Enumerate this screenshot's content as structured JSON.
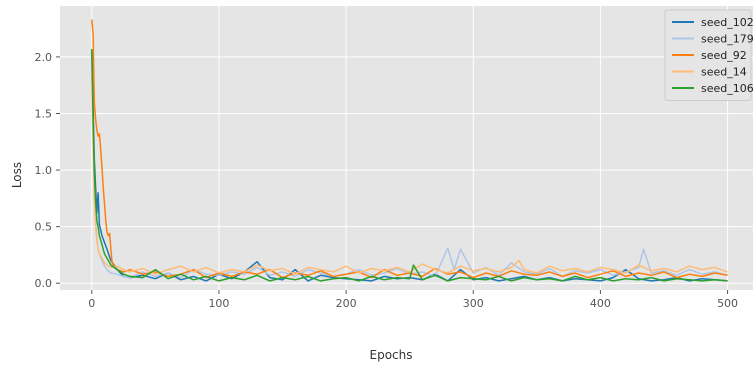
{
  "chart_data": {
    "type": "line",
    "title": "",
    "xlabel": "Epochs",
    "ylabel": "Loss",
    "xlim": [
      -25,
      520
    ],
    "ylim": [
      -0.06,
      2.45
    ],
    "xticks": [
      0,
      100,
      200,
      300,
      400,
      500
    ],
    "yticks": [
      0.0,
      0.5,
      1.0,
      1.5,
      2.0
    ],
    "xtick_labels": [
      "0",
      "100",
      "200",
      "300",
      "400",
      "500"
    ],
    "ytick_labels": [
      "0.0",
      "0.5",
      "1.0",
      "1.5",
      "2.0"
    ],
    "grid": true,
    "legend_position": "top-right",
    "background": "#e5e5e5",
    "series": [
      {
        "name": "seed_102",
        "color": "#1f77b4",
        "x": [
          0,
          1,
          2,
          3,
          4,
          5,
          6,
          8,
          10,
          12,
          15,
          20,
          25,
          30,
          40,
          50,
          60,
          70,
          80,
          90,
          100,
          110,
          120,
          130,
          140,
          150,
          160,
          170,
          180,
          190,
          200,
          210,
          220,
          230,
          240,
          250,
          260,
          270,
          280,
          290,
          300,
          310,
          320,
          330,
          340,
          350,
          360,
          370,
          380,
          390,
          400,
          410,
          420,
          430,
          440,
          450,
          460,
          470,
          480,
          490,
          500
        ],
        "values": [
          2.05,
          1.55,
          1.1,
          0.85,
          0.62,
          0.8,
          0.52,
          0.42,
          0.36,
          0.3,
          0.2,
          0.12,
          0.06,
          0.05,
          0.07,
          0.04,
          0.09,
          0.03,
          0.06,
          0.02,
          0.08,
          0.04,
          0.1,
          0.19,
          0.05,
          0.03,
          0.12,
          0.02,
          0.07,
          0.05,
          0.04,
          0.03,
          0.02,
          0.06,
          0.04,
          0.05,
          0.03,
          0.08,
          0.02,
          0.12,
          0.03,
          0.05,
          0.02,
          0.04,
          0.06,
          0.03,
          0.05,
          0.02,
          0.04,
          0.03,
          0.02,
          0.05,
          0.12,
          0.04,
          0.02,
          0.03,
          0.05,
          0.02,
          0.04,
          0.03,
          0.02
        ]
      },
      {
        "name": "seed_179",
        "color": "#aec7e8",
        "x": [
          0,
          1,
          2,
          3,
          4,
          5,
          6,
          8,
          10,
          12,
          15,
          20,
          25,
          30,
          40,
          50,
          60,
          70,
          80,
          90,
          100,
          110,
          120,
          130,
          140,
          150,
          160,
          170,
          180,
          190,
          200,
          210,
          220,
          230,
          240,
          250,
          260,
          270,
          280,
          285,
          290,
          300,
          310,
          320,
          330,
          340,
          350,
          360,
          370,
          380,
          390,
          400,
          410,
          420,
          430,
          434,
          440,
          450,
          460,
          470,
          480,
          490,
          500
        ],
        "values": [
          1.95,
          1.3,
          0.8,
          0.55,
          0.4,
          0.3,
          0.26,
          0.2,
          0.15,
          0.12,
          0.09,
          0.08,
          0.06,
          0.05,
          0.1,
          0.06,
          0.09,
          0.05,
          0.12,
          0.08,
          0.07,
          0.1,
          0.08,
          0.14,
          0.07,
          0.1,
          0.06,
          0.12,
          0.09,
          0.06,
          0.08,
          0.12,
          0.07,
          0.09,
          0.13,
          0.08,
          0.1,
          0.06,
          0.31,
          0.12,
          0.3,
          0.09,
          0.14,
          0.07,
          0.18,
          0.1,
          0.08,
          0.13,
          0.06,
          0.11,
          0.09,
          0.12,
          0.07,
          0.1,
          0.14,
          0.3,
          0.09,
          0.11,
          0.07,
          0.12,
          0.08,
          0.1,
          0.07
        ]
      },
      {
        "name": "seed_92",
        "color": "#ff7f0e",
        "x": [
          0,
          1,
          2,
          3,
          4,
          5,
          6,
          7,
          8,
          9,
          10,
          11,
          12,
          13,
          14,
          15,
          16,
          18,
          20,
          25,
          30,
          40,
          50,
          60,
          70,
          80,
          90,
          100,
          110,
          120,
          130,
          140,
          150,
          160,
          170,
          180,
          190,
          200,
          210,
          220,
          230,
          240,
          250,
          260,
          270,
          280,
          290,
          300,
          310,
          320,
          330,
          340,
          350,
          360,
          370,
          380,
          390,
          400,
          410,
          420,
          430,
          440,
          450,
          460,
          470,
          480,
          490,
          500
        ],
        "values": [
          2.33,
          2.2,
          1.6,
          1.45,
          1.35,
          1.3,
          1.32,
          1.18,
          1.02,
          0.85,
          0.7,
          0.55,
          0.45,
          0.42,
          0.44,
          0.3,
          0.18,
          0.14,
          0.12,
          0.1,
          0.12,
          0.08,
          0.1,
          0.06,
          0.08,
          0.12,
          0.05,
          0.09,
          0.06,
          0.1,
          0.08,
          0.12,
          0.05,
          0.09,
          0.07,
          0.11,
          0.06,
          0.08,
          0.1,
          0.05,
          0.12,
          0.07,
          0.09,
          0.06,
          0.13,
          0.08,
          0.1,
          0.05,
          0.09,
          0.06,
          0.11,
          0.08,
          0.07,
          0.1,
          0.06,
          0.09,
          0.05,
          0.08,
          0.11,
          0.06,
          0.09,
          0.07,
          0.1,
          0.05,
          0.08,
          0.06,
          0.09,
          0.07
        ]
      },
      {
        "name": "seed_14",
        "color": "#ffbb78",
        "x": [
          0,
          1,
          2,
          3,
          4,
          5,
          6,
          8,
          10,
          12,
          15,
          20,
          25,
          30,
          40,
          50,
          60,
          70,
          80,
          90,
          100,
          110,
          120,
          130,
          140,
          150,
          160,
          170,
          180,
          190,
          200,
          210,
          220,
          230,
          240,
          250,
          260,
          270,
          280,
          290,
          300,
          310,
          320,
          330,
          336,
          340,
          350,
          360,
          370,
          380,
          390,
          400,
          410,
          420,
          430,
          440,
          450,
          460,
          470,
          480,
          490,
          500
        ],
        "values": [
          1.85,
          1.2,
          0.75,
          0.5,
          0.38,
          0.3,
          0.26,
          0.22,
          0.18,
          0.16,
          0.14,
          0.15,
          0.12,
          0.1,
          0.13,
          0.08,
          0.12,
          0.15,
          0.1,
          0.14,
          0.09,
          0.12,
          0.1,
          0.16,
          0.11,
          0.13,
          0.08,
          0.14,
          0.12,
          0.1,
          0.15,
          0.09,
          0.13,
          0.11,
          0.14,
          0.1,
          0.17,
          0.12,
          0.09,
          0.15,
          0.11,
          0.13,
          0.1,
          0.14,
          0.2,
          0.12,
          0.09,
          0.15,
          0.11,
          0.13,
          0.1,
          0.14,
          0.12,
          0.09,
          0.16,
          0.11,
          0.13,
          0.1,
          0.15,
          0.12,
          0.14,
          0.1
        ]
      },
      {
        "name": "seed_106",
        "color": "#2ca02c",
        "x": [
          0,
          1,
          2,
          3,
          4,
          5,
          6,
          8,
          10,
          12,
          15,
          20,
          25,
          30,
          40,
          50,
          60,
          70,
          80,
          90,
          100,
          110,
          120,
          130,
          140,
          150,
          160,
          170,
          180,
          190,
          200,
          210,
          220,
          230,
          240,
          250,
          253,
          260,
          270,
          280,
          290,
          300,
          310,
          320,
          330,
          340,
          350,
          360,
          370,
          380,
          390,
          400,
          410,
          420,
          430,
          440,
          450,
          460,
          470,
          480,
          490,
          500
        ],
        "values": [
          2.07,
          1.45,
          0.98,
          0.72,
          0.55,
          0.5,
          0.42,
          0.34,
          0.26,
          0.22,
          0.16,
          0.12,
          0.08,
          0.06,
          0.05,
          0.12,
          0.04,
          0.08,
          0.03,
          0.06,
          0.02,
          0.05,
          0.03,
          0.07,
          0.02,
          0.05,
          0.03,
          0.06,
          0.02,
          0.04,
          0.05,
          0.02,
          0.06,
          0.03,
          0.05,
          0.04,
          0.16,
          0.03,
          0.07,
          0.02,
          0.05,
          0.04,
          0.03,
          0.06,
          0.02,
          0.05,
          0.03,
          0.04,
          0.02,
          0.06,
          0.03,
          0.05,
          0.02,
          0.04,
          0.03,
          0.05,
          0.02,
          0.04,
          0.03,
          0.02,
          0.03,
          0.02
        ]
      }
    ]
  }
}
